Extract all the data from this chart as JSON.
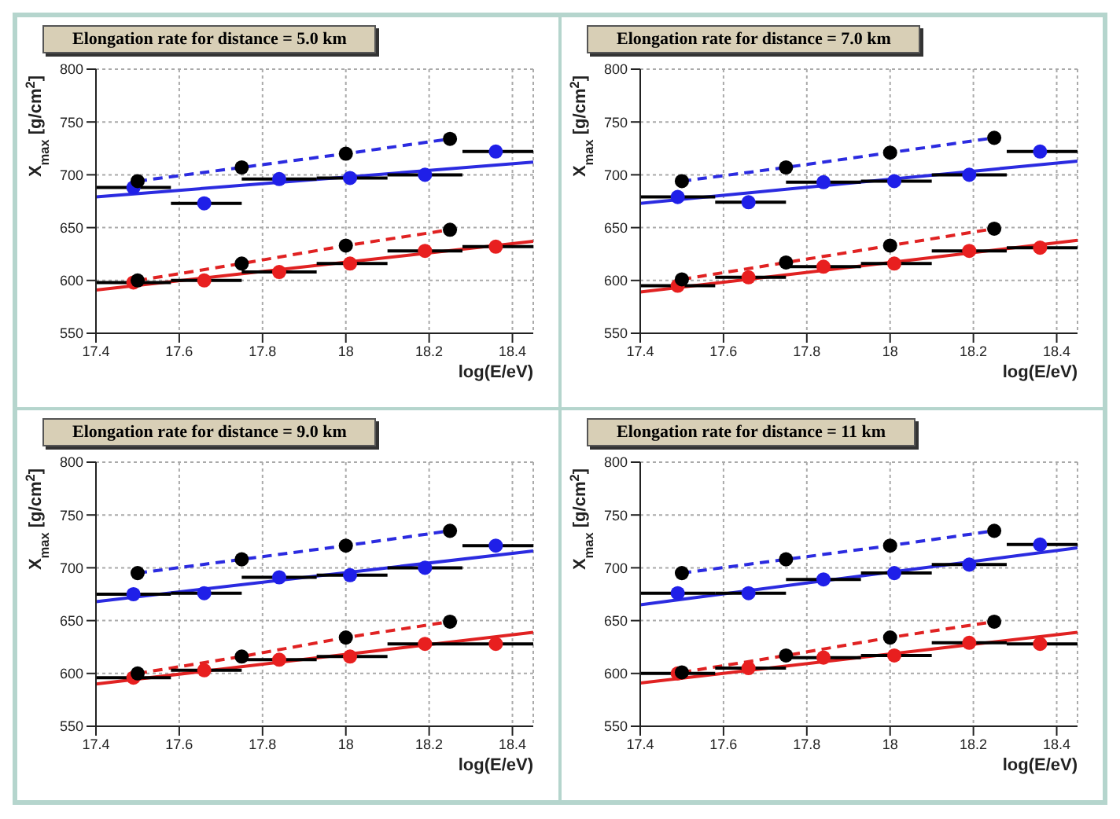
{
  "chart_data": [
    {
      "type": "scatter",
      "title": "Elongation rate for distance = 5.0 km",
      "xlabel": "log(E/eV)",
      "ylabel": "X$_{max}$ [g/cm$^{2}$]",
      "xlim": [
        17.4,
        18.45
      ],
      "xticks": [
        17.4,
        17.6,
        17.8,
        18,
        18.2,
        18.4
      ],
      "ylim": [
        550,
        800
      ],
      "yticks": [
        550,
        600,
        650,
        700,
        750,
        800
      ],
      "grid": true,
      "marker": "circle",
      "series": [
        {
          "type": "line",
          "color": "#2b2be0",
          "x": [
            17.5,
            17.75,
            18,
            18.25
          ],
          "values": [
            694,
            707,
            720,
            734
          ],
          "line_style": "dashed",
          "marker": "none"
        },
        {
          "type": "line",
          "color": "#e02222",
          "x": [
            17.5,
            17.75,
            18,
            18.25
          ],
          "values": [
            600,
            616,
            633,
            648
          ],
          "line_style": "dashed",
          "marker": "none"
        },
        {
          "type": "line",
          "color": "#2b2be0",
          "x": [
            17.4,
            18.45
          ],
          "values": [
            679,
            712
          ],
          "line_style": "solid",
          "marker": "none"
        },
        {
          "type": "line",
          "color": "#e02222",
          "x": [
            17.4,
            18.45
          ],
          "values": [
            591,
            637
          ],
          "line_style": "solid",
          "marker": "none"
        },
        {
          "color": "#1f1fe8",
          "x": [
            17.49,
            17.66,
            17.84,
            18.01,
            18.19,
            18.36
          ],
          "values": [
            688,
            673,
            696,
            697,
            700,
            722
          ],
          "xerrors": [
            [
              17.4,
              17.58
            ],
            [
              17.58,
              17.75
            ],
            [
              17.75,
              17.93
            ],
            [
              17.93,
              18.1
            ],
            [
              18.1,
              18.28
            ],
            [
              18.28,
              18.45
            ]
          ]
        },
        {
          "color": "#e81f1f",
          "x": [
            17.49,
            17.66,
            17.84,
            18.01,
            18.19,
            18.36
          ],
          "values": [
            598,
            600,
            608,
            616,
            628,
            632
          ],
          "xerrors": [
            [
              17.4,
              17.58
            ],
            [
              17.58,
              17.75
            ],
            [
              17.75,
              17.93
            ],
            [
              17.93,
              18.1
            ],
            [
              18.1,
              18.28
            ],
            [
              18.28,
              18.45
            ]
          ]
        },
        {
          "color": "#000000",
          "x": [
            17.5,
            17.75,
            18,
            18.25
          ],
          "values": [
            694,
            707,
            720,
            734
          ]
        },
        {
          "color": "#000000",
          "x": [
            17.5,
            17.75,
            18,
            18.25
          ],
          "values": [
            600,
            616,
            633,
            648
          ]
        }
      ]
    },
    {
      "type": "scatter",
      "title": "Elongation rate for distance = 7.0 km",
      "xlabel": "log(E/eV)",
      "ylabel": "X$_{max}$ [g/cm$^{2}$]",
      "xlim": [
        17.4,
        18.45
      ],
      "xticks": [
        17.4,
        17.6,
        17.8,
        18,
        18.2,
        18.4
      ],
      "ylim": [
        550,
        800
      ],
      "yticks": [
        550,
        600,
        650,
        700,
        750,
        800
      ],
      "grid": true,
      "marker": "circle",
      "series": [
        {
          "type": "line",
          "color": "#2b2be0",
          "x": [
            17.5,
            17.75,
            18,
            18.25
          ],
          "values": [
            694,
            707,
            721,
            735
          ],
          "line_style": "dashed",
          "marker": "none"
        },
        {
          "type": "line",
          "color": "#e02222",
          "x": [
            17.5,
            17.75,
            18,
            18.25
          ],
          "values": [
            601,
            617,
            633,
            649
          ],
          "line_style": "dashed",
          "marker": "none"
        },
        {
          "type": "line",
          "color": "#2b2be0",
          "x": [
            17.4,
            18.45
          ],
          "values": [
            673,
            713
          ],
          "line_style": "solid",
          "marker": "none"
        },
        {
          "type": "line",
          "color": "#e02222",
          "x": [
            17.4,
            18.45
          ],
          "values": [
            589,
            638
          ],
          "line_style": "solid",
          "marker": "none"
        },
        {
          "color": "#1f1fe8",
          "x": [
            17.49,
            17.66,
            17.84,
            18.01,
            18.19,
            18.36
          ],
          "values": [
            679,
            674,
            693,
            694,
            700,
            722
          ],
          "xerrors": [
            [
              17.4,
              17.58
            ],
            [
              17.58,
              17.75
            ],
            [
              17.75,
              17.93
            ],
            [
              17.93,
              18.1
            ],
            [
              18.1,
              18.28
            ],
            [
              18.28,
              18.45
            ]
          ]
        },
        {
          "color": "#e81f1f",
          "x": [
            17.49,
            17.66,
            17.84,
            18.01,
            18.19,
            18.36
          ],
          "values": [
            595,
            603,
            613,
            616,
            628,
            631
          ],
          "xerrors": [
            [
              17.4,
              17.58
            ],
            [
              17.58,
              17.75
            ],
            [
              17.75,
              17.93
            ],
            [
              17.93,
              18.1
            ],
            [
              18.1,
              18.28
            ],
            [
              18.28,
              18.45
            ]
          ]
        },
        {
          "color": "#000000",
          "x": [
            17.5,
            17.75,
            18,
            18.25
          ],
          "values": [
            694,
            707,
            721,
            735
          ]
        },
        {
          "color": "#000000",
          "x": [
            17.5,
            17.75,
            18,
            18.25
          ],
          "values": [
            601,
            617,
            633,
            649
          ]
        }
      ]
    },
    {
      "type": "scatter",
      "title": "Elongation rate for distance = 9.0 km",
      "xlabel": "log(E/eV)",
      "ylabel": "X$_{max}$ [g/cm$^{2}$]",
      "xlim": [
        17.4,
        18.45
      ],
      "xticks": [
        17.4,
        17.6,
        17.8,
        18,
        18.2,
        18.4
      ],
      "ylim": [
        550,
        800
      ],
      "yticks": [
        550,
        600,
        650,
        700,
        750,
        800
      ],
      "grid": true,
      "marker": "circle",
      "series": [
        {
          "type": "line",
          "color": "#2b2be0",
          "x": [
            17.5,
            17.75,
            18,
            18.25
          ],
          "values": [
            695,
            708,
            721,
            735
          ],
          "line_style": "dashed",
          "marker": "none"
        },
        {
          "type": "line",
          "color": "#e02222",
          "x": [
            17.5,
            17.75,
            18,
            18.25
          ],
          "values": [
            600,
            616,
            634,
            649
          ],
          "line_style": "dashed",
          "marker": "none"
        },
        {
          "type": "line",
          "color": "#2b2be0",
          "x": [
            17.4,
            18.45
          ],
          "values": [
            668,
            716
          ],
          "line_style": "solid",
          "marker": "none"
        },
        {
          "type": "line",
          "color": "#e02222",
          "x": [
            17.4,
            18.45
          ],
          "values": [
            590,
            639
          ],
          "line_style": "solid",
          "marker": "none"
        },
        {
          "color": "#1f1fe8",
          "x": [
            17.49,
            17.66,
            17.84,
            18.01,
            18.19,
            18.36
          ],
          "values": [
            675,
            676,
            691,
            693,
            700,
            721
          ],
          "xerrors": [
            [
              17.4,
              17.58
            ],
            [
              17.58,
              17.75
            ],
            [
              17.75,
              17.93
            ],
            [
              17.93,
              18.1
            ],
            [
              18.1,
              18.28
            ],
            [
              18.28,
              18.45
            ]
          ]
        },
        {
          "color": "#e81f1f",
          "x": [
            17.49,
            17.66,
            17.84,
            18.01,
            18.19,
            18.36
          ],
          "values": [
            596,
            603,
            613,
            616,
            628,
            628
          ],
          "xerrors": [
            [
              17.4,
              17.58
            ],
            [
              17.58,
              17.75
            ],
            [
              17.75,
              17.93
            ],
            [
              17.93,
              18.1
            ],
            [
              18.1,
              18.28
            ],
            [
              18.28,
              18.45
            ]
          ]
        },
        {
          "color": "#000000",
          "x": [
            17.5,
            17.75,
            18,
            18.25
          ],
          "values": [
            695,
            708,
            721,
            735
          ]
        },
        {
          "color": "#000000",
          "x": [
            17.5,
            17.75,
            18,
            18.25
          ],
          "values": [
            600,
            616,
            634,
            649
          ]
        }
      ]
    },
    {
      "type": "scatter",
      "title": "Elongation rate for distance = 11 km",
      "xlabel": "log(E/eV)",
      "ylabel": "X$_{max}$ [g/cm$^{2}$]",
      "xlim": [
        17.4,
        18.45
      ],
      "xticks": [
        17.4,
        17.6,
        17.8,
        18,
        18.2,
        18.4
      ],
      "ylim": [
        550,
        800
      ],
      "yticks": [
        550,
        600,
        650,
        700,
        750,
        800
      ],
      "grid": true,
      "marker": "circle",
      "series": [
        {
          "type": "line",
          "color": "#2b2be0",
          "x": [
            17.5,
            17.75,
            18,
            18.25
          ],
          "values": [
            695,
            708,
            721,
            735
          ],
          "line_style": "dashed",
          "marker": "none"
        },
        {
          "type": "line",
          "color": "#e02222",
          "x": [
            17.5,
            17.75,
            18,
            18.25
          ],
          "values": [
            601,
            617,
            634,
            649
          ],
          "line_style": "dashed",
          "marker": "none"
        },
        {
          "type": "line",
          "color": "#2b2be0",
          "x": [
            17.4,
            18.45
          ],
          "values": [
            665,
            719
          ],
          "line_style": "solid",
          "marker": "none"
        },
        {
          "type": "line",
          "color": "#e02222",
          "x": [
            17.4,
            18.45
          ],
          "values": [
            591,
            639
          ],
          "line_style": "solid",
          "marker": "none"
        },
        {
          "color": "#1f1fe8",
          "x": [
            17.49,
            17.66,
            17.84,
            18.01,
            18.19,
            18.36
          ],
          "values": [
            676,
            676,
            689,
            695,
            703,
            722
          ],
          "xerrors": [
            [
              17.4,
              17.58
            ],
            [
              17.58,
              17.75
            ],
            [
              17.75,
              17.93
            ],
            [
              17.93,
              18.1
            ],
            [
              18.1,
              18.28
            ],
            [
              18.28,
              18.45
            ]
          ]
        },
        {
          "color": "#e81f1f",
          "x": [
            17.49,
            17.66,
            17.84,
            18.01,
            18.19,
            18.36
          ],
          "values": [
            600,
            605,
            615,
            617,
            629,
            628
          ],
          "xerrors": [
            [
              17.4,
              17.58
            ],
            [
              17.58,
              17.75
            ],
            [
              17.75,
              17.93
            ],
            [
              17.93,
              18.1
            ],
            [
              18.1,
              18.28
            ],
            [
              18.28,
              18.45
            ]
          ]
        },
        {
          "color": "#000000",
          "x": [
            17.5,
            17.75,
            18,
            18.25
          ],
          "values": [
            695,
            708,
            721,
            735
          ]
        },
        {
          "color": "#000000",
          "x": [
            17.5,
            17.75,
            18,
            18.25
          ],
          "values": [
            601,
            617,
            634,
            649
          ]
        }
      ]
    }
  ]
}
